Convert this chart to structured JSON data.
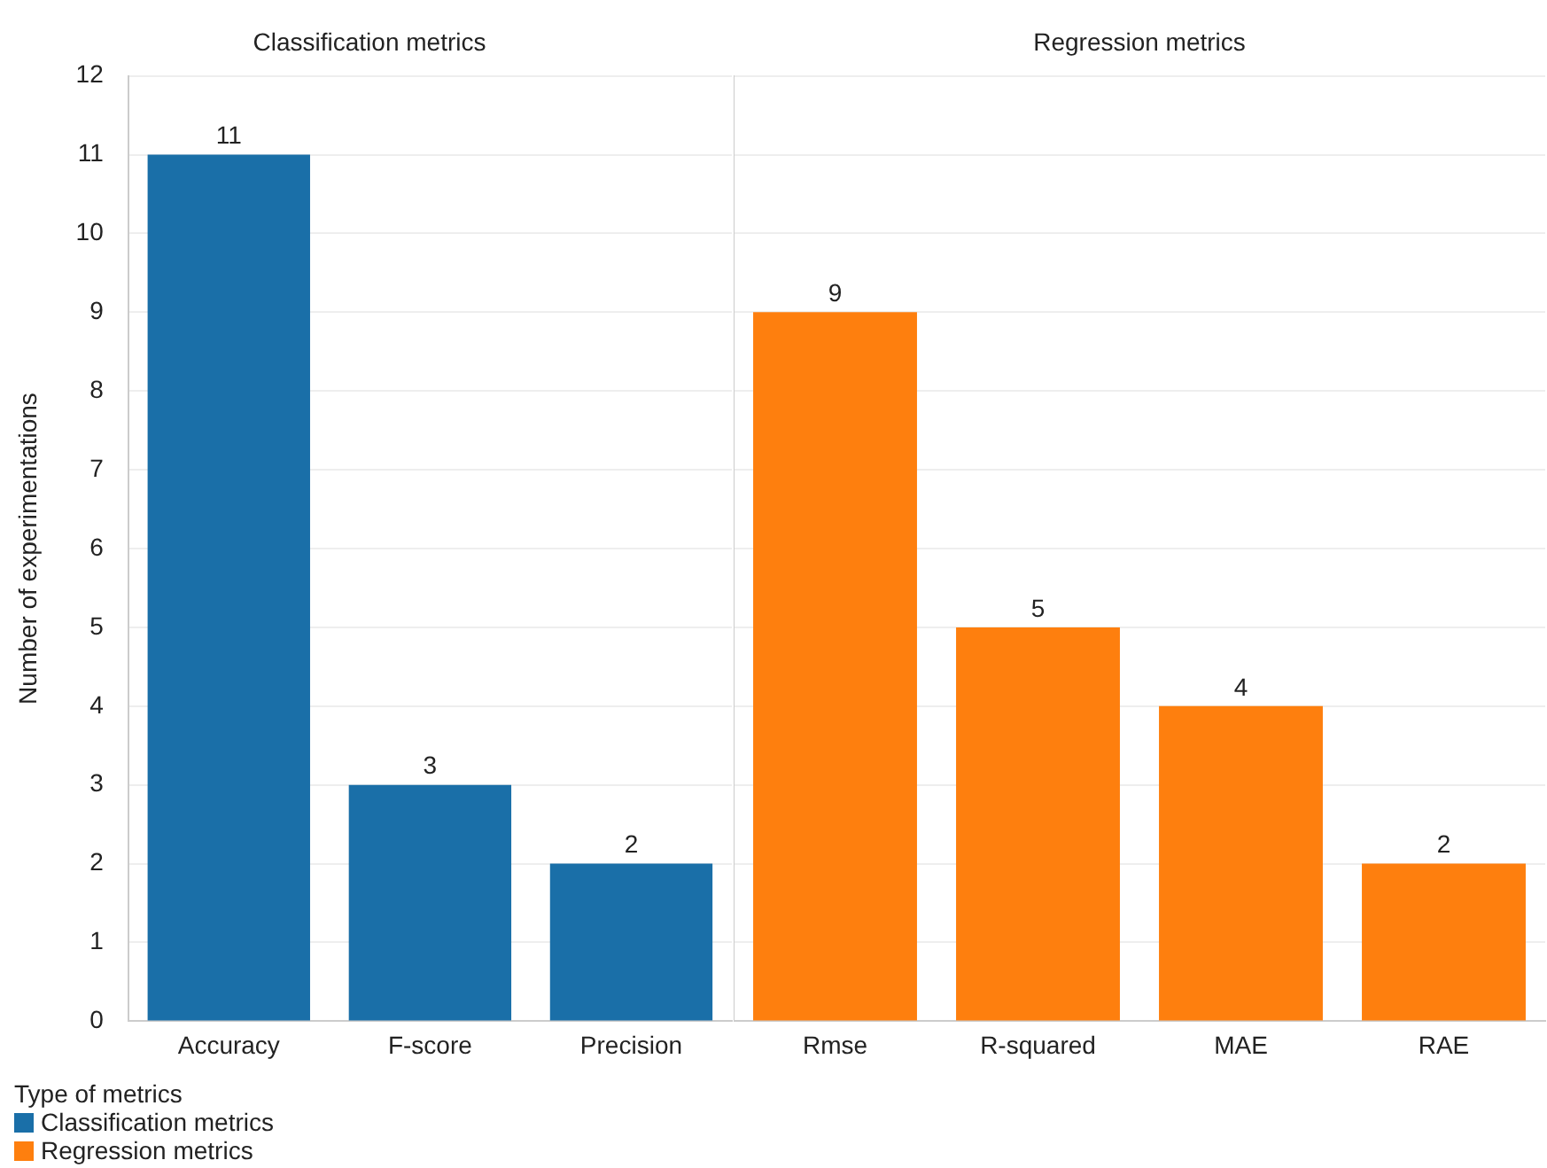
{
  "chart_data": [
    {
      "type": "bar",
      "title": "Classification metrics",
      "ylabel": "Number of experimentations",
      "categories": [
        "Accuracy",
        "F-score",
        "Precision"
      ],
      "series": [
        {
          "name": "Classification metrics",
          "color": "#1a6fa8",
          "values": [
            11,
            3,
            2
          ]
        }
      ],
      "ylim": [
        0,
        12
      ],
      "yticks": [
        0,
        1,
        2,
        3,
        4,
        5,
        6,
        7,
        8,
        9,
        10,
        11,
        12
      ],
      "grid": "y",
      "data_labels": true,
      "legend": "bottom left",
      "legend_title": "Type of metrics"
    },
    {
      "type": "bar",
      "title": "Regression metrics",
      "categories": [
        "Rmse",
        "R-squared",
        "MAE",
        "RAE"
      ],
      "series": [
        {
          "name": "Regression metrics",
          "color": "#fe7f0e",
          "values": [
            9,
            5,
            4,
            2
          ]
        }
      ],
      "ylim": [
        0,
        12
      ],
      "yticks": [
        0,
        1,
        2,
        3,
        4,
        5,
        6,
        7,
        8,
        9,
        10,
        11,
        12
      ],
      "grid": "y",
      "data_labels": true,
      "legend": "bottom left",
      "tick_labels": "x"
    }
  ]
}
